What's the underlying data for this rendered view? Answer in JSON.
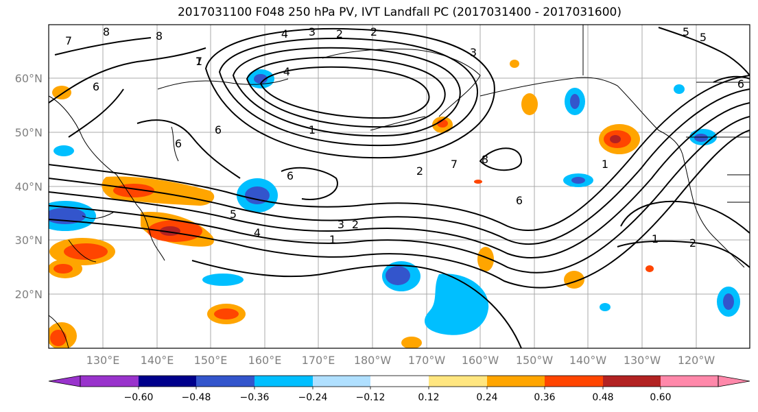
{
  "title": "2017031100 F048 250 hPa PV, IVT Landfall PC (2017031400 - 2017031600)",
  "lat_labels": [
    "60°N",
    "50°N",
    "40°N",
    "30°N",
    "20°N"
  ],
  "lon_labels": [
    "130°E",
    "140°E",
    "150°E",
    "160°E",
    "170°E",
    "180°W",
    "170°W",
    "160°W",
    "150°W",
    "140°W",
    "130°W",
    "120°W"
  ],
  "colorbar": {
    "ticks": [
      "−0.60",
      "−0.48",
      "−0.36",
      "−0.24",
      "−0.12",
      "0.12",
      "0.24",
      "0.36",
      "0.48",
      "0.60"
    ],
    "colors": [
      "#9933cc",
      "#00008b",
      "#3355cc",
      "#00bfff",
      "#b0e0ff",
      "#ffffff",
      "#ffe680",
      "#ffa500",
      "#ff4500",
      "#b22222",
      "#ff88aa"
    ]
  },
  "contour_labels": [
    "1",
    "2",
    "3",
    "4",
    "5",
    "6",
    "7",
    "8",
    "1",
    "2",
    "6",
    "6",
    "8",
    "1",
    "6",
    "7",
    "5",
    "4",
    "3",
    "2",
    "1",
    "6",
    "5",
    "4",
    "3",
    "2",
    "1",
    "2",
    "6",
    "7",
    "8"
  ],
  "colors": {
    "grid": "#a9a9a9",
    "contour": "#000000",
    "axis_label": "#808080"
  }
}
